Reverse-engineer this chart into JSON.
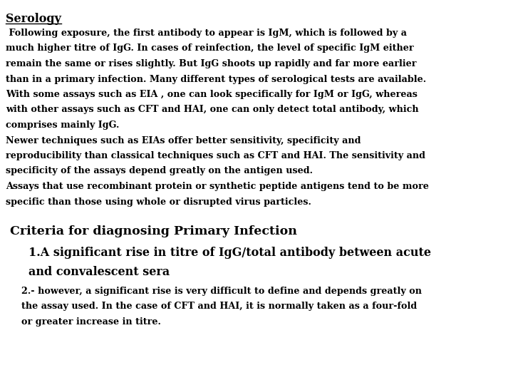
{
  "background_color": "#ffffff",
  "title": "Serology",
  "title_fontsize": 11.5,
  "body_font": "DejaVu Serif",
  "body_size": 9.2,
  "section2_title": "Criteria for diagnosing Primary Infection",
  "section2_title_size": 12.5,
  "item1_size": 11.5,
  "item2_size": 9.2,
  "lines": [
    " Following exposure, the first antibody to appear is IgM, which is followed by a",
    "much higher titre of IgG. In cases of reinfection, the level of specific IgM either",
    "remain the same or rises slightly. But IgG shoots up rapidly and far more earlier",
    "than in a primary infection. Many different types of serological tests are available.",
    "With some assays such as EIA , one can look specifically for IgM or IgG, whereas",
    "with other assays such as CFT and HAI, one can only detect total antibody, which",
    "comprises mainly IgG.",
    "Newer techniques such as EIAs offer better sensitivity, specificity and",
    "reproducibility than classical techniques such as CFT and HAI. The sensitivity and",
    "specificity of the assays depend greatly on the antigen used.",
    "Assays that use recombinant protein or synthetic peptide antigens tend to be more",
    "specific than those using whole or disrupted virus particles."
  ],
  "section2_lines_large": [
    "1.A significant rise in titre of IgG/total antibody between acute",
    "and convalescent sera"
  ],
  "section2_lines_small": [
    "2.- however, a significant rise is very difficult to define and depends greatly on",
    "the assay used. In the case of CFT and HAI, it is normally taken as a four-fold",
    "or greater increase in titre."
  ]
}
